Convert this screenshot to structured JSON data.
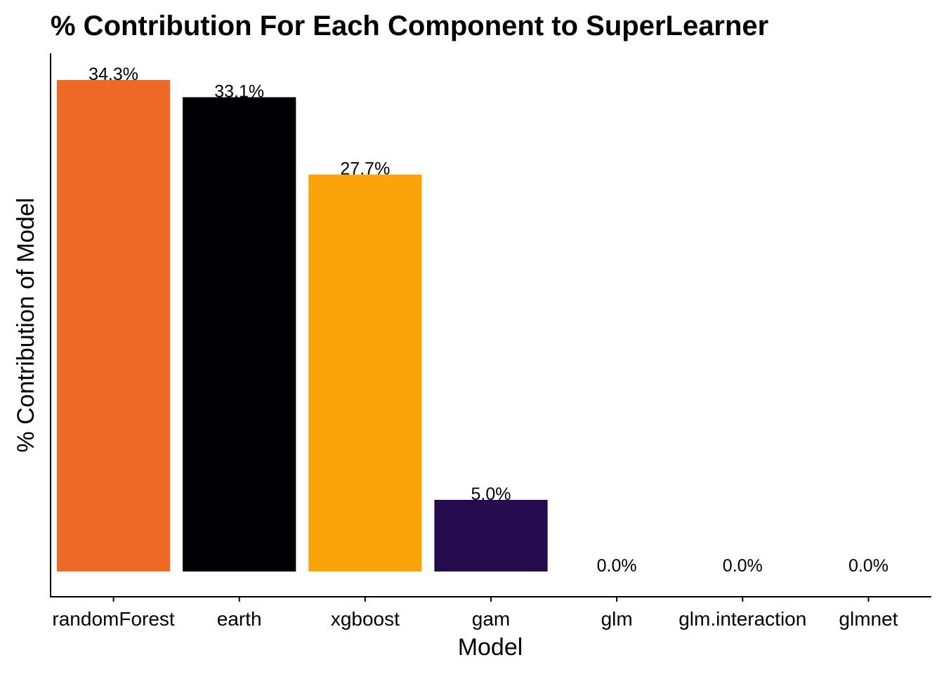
{
  "chart_data": {
    "type": "bar",
    "title": "% Contribution For Each Component to SuperLearner",
    "xlabel": "Model",
    "ylabel": "% Contribution of Model",
    "categories": [
      "randomForest",
      "earth",
      "xgboost",
      "gam",
      "glm",
      "glm.interaction",
      "glmnet"
    ],
    "values": [
      34.3,
      33.1,
      27.7,
      5.0,
      0.0,
      0.0,
      0.0
    ],
    "value_labels": [
      "34.3%",
      "33.1%",
      "27.7%",
      "5.0%",
      "0.0%",
      "0.0%",
      "0.0%"
    ],
    "colors": [
      "#ED6925",
      "#000004",
      "#FBA40A",
      "#240C4F",
      "#240C4F",
      "#240C4F",
      "#240C4F"
    ],
    "ylim": [
      0,
      36
    ],
    "grid": false,
    "legend": "none",
    "y_tick_labels": "hidden"
  }
}
